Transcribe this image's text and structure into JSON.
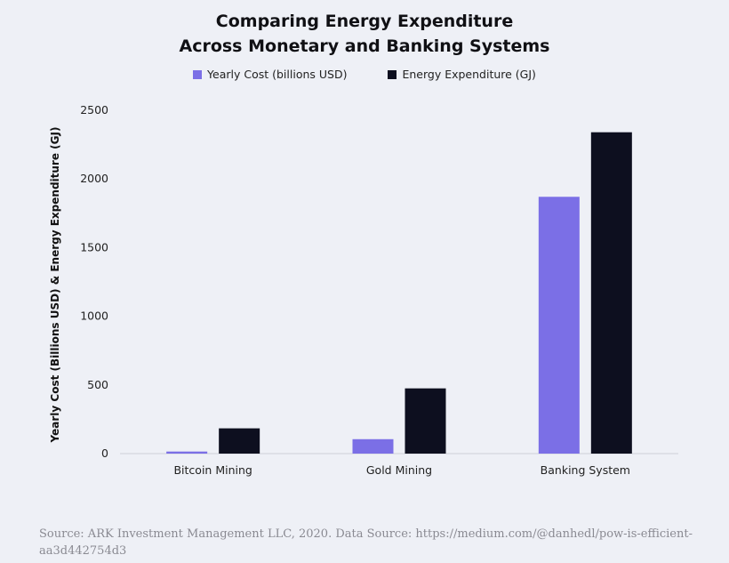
{
  "chart_data": {
    "type": "bar",
    "title_lines": [
      "Comparing Energy Expenditure",
      "Across Monetary and Banking Systems"
    ],
    "xlabel": "",
    "ylabel": "Yearly Cost (Billions USD) & Energy Expenditure (GJ)",
    "categories": [
      "Bitcoin Mining",
      "Gold Mining",
      "Banking System"
    ],
    "series": [
      {
        "name": "Yearly Cost (billions USD)",
        "color": "#7b6fe6",
        "values": [
          15,
          105,
          1870
        ]
      },
      {
        "name": "Energy Expenditure (GJ)",
        "color": "#0d0f1f",
        "values": [
          184,
          475,
          2340
        ]
      }
    ],
    "yticks": [
      "0",
      "500",
      "1000",
      "1500",
      "2000",
      "2500"
    ],
    "ylim": [
      0,
      2500
    ],
    "grid": false,
    "legend_position": "top-center"
  },
  "source": "Source: ARK Investment Management LLC, 2020. Data Source: https://medium.com/@danhedl/pow-is-efficient-aa3d442754d3"
}
